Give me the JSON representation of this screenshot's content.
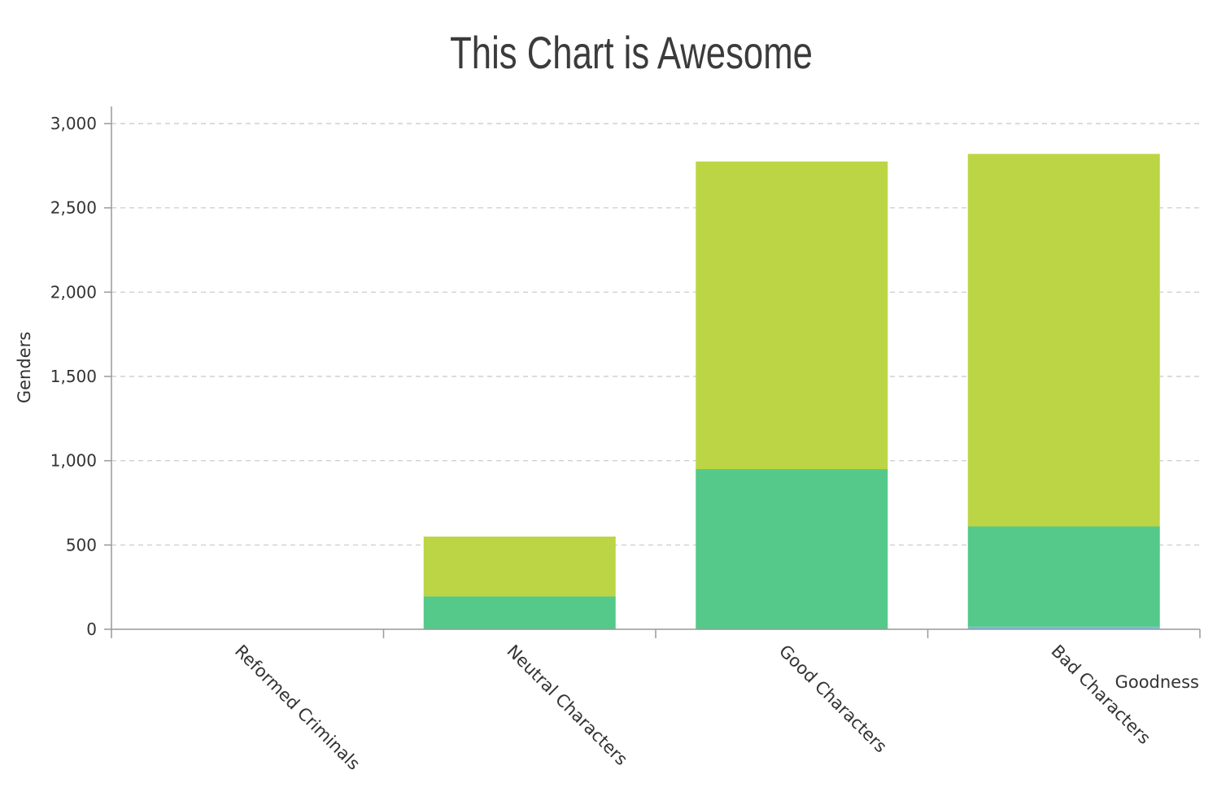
{
  "chart_data": {
    "type": "bar",
    "stacked": true,
    "title": "This Chart is Awesome",
    "xlabel": "Goodness",
    "ylabel": "Genders",
    "categories": [
      "Reformed Criminals",
      "Neutral Characters",
      "Good Characters",
      "Bad Characters"
    ],
    "ylim": [
      0,
      3000
    ],
    "yticks": [
      0,
      500,
      1000,
      1500,
      2000,
      2500,
      3000
    ],
    "ytick_labels": [
      "0",
      "500",
      "1,000",
      "1,500",
      "2,000",
      "2,500",
      "3,000"
    ],
    "grid": true,
    "series": [
      {
        "values": [
          0,
          0,
          0,
          15
        ],
        "color": "#7cb8e8"
      },
      {
        "values": [
          0,
          195,
          950,
          595
        ],
        "color": "#54c98a"
      },
      {
        "values": [
          0,
          355,
          1825,
          2210
        ],
        "color": "#bcd544"
      }
    ]
  }
}
